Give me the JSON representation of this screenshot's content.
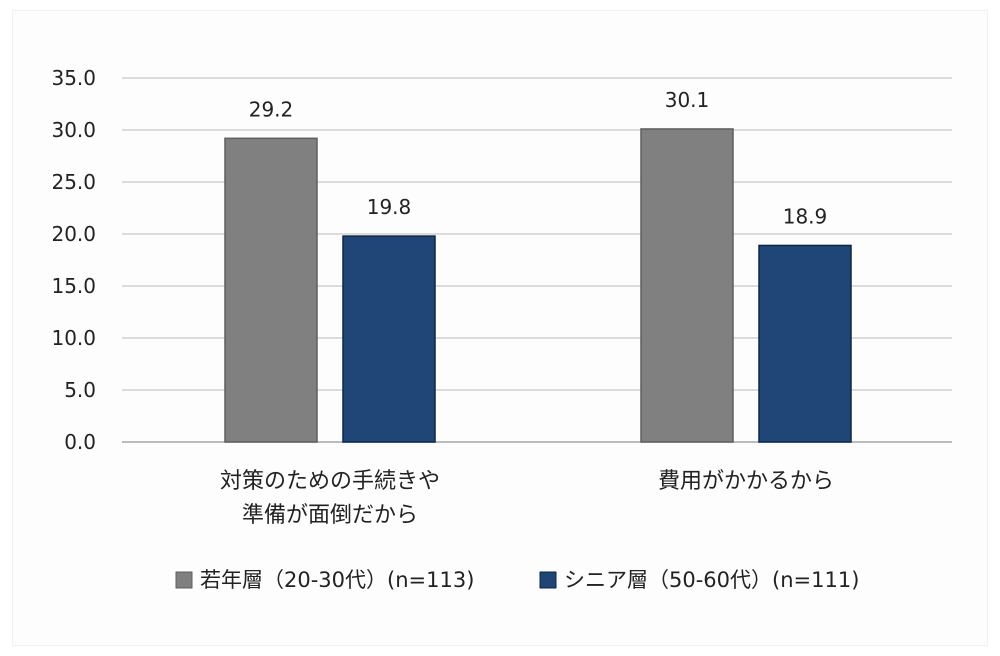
{
  "chart_data": {
    "type": "bar",
    "title": "",
    "xlabel": "",
    "ylabel": "",
    "categories": [
      [
        "対策のための手続きや",
        "準備が面倒だから"
      ],
      [
        "費用がかかるから"
      ]
    ],
    "series": [
      {
        "name": "若年層（20-30代）(n=113)",
        "values": [
          29.2,
          30.1
        ],
        "color": "#808080",
        "border": "#5f5f5f"
      },
      {
        "name": "シニア層（50-60代）(n=111)",
        "values": [
          19.8,
          18.9
        ],
        "color": "#1f4676",
        "border": "#0f2747"
      }
    ],
    "ylim": [
      0,
      35
    ],
    "yticks": [
      "0.0",
      "5.0",
      "10.0",
      "15.0",
      "20.0",
      "25.0",
      "30.0",
      "35.0"
    ],
    "grid": true,
    "legend_position": "bottom"
  }
}
